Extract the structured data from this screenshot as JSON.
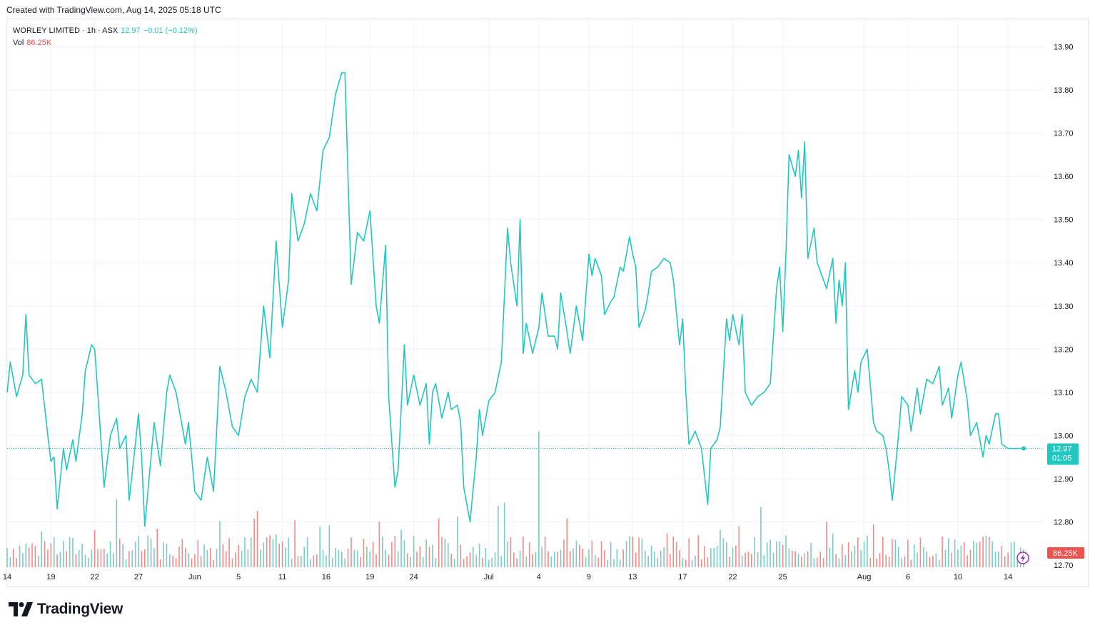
{
  "header": {
    "created_text": "Created with TradingView.com, Aug 14, 2025 05:18 UTC"
  },
  "legend": {
    "symbol": "WORLEY LIMITED · 1h · ASX",
    "price": "12.97",
    "change": "−0.01 (−0.12%)",
    "volume_label": "Vol",
    "volume_value": "86.25K"
  },
  "price_label": {
    "price": "12.97",
    "countdown": "01:05"
  },
  "volume_label_box": "86.25K",
  "brand": {
    "name": "TradingView"
  },
  "colors": {
    "line": "#22c7bf",
    "up_volume": "#7ccbc4",
    "down_volume": "#f28b87",
    "grid": "#f0f3fa",
    "text": "#131722"
  },
  "icons": {
    "logo": "tradingview-logo-icon",
    "lightning": "lightning-icon"
  },
  "chart_data": {
    "type": "line",
    "title": "WORLEY LIMITED · 1h · ASX",
    "y_ticks": [
      "13.90",
      "13.80",
      "13.70",
      "13.60",
      "13.50",
      "13.40",
      "13.30",
      "13.20",
      "13.10",
      "13.00",
      "12.90",
      "12.80",
      "12.70"
    ],
    "ylim": [
      12.695,
      13.962
    ],
    "x_ticks": [
      {
        "label": "14",
        "i": 0
      },
      {
        "label": "19",
        "i": 14
      },
      {
        "label": "22",
        "i": 28
      },
      {
        "label": "27",
        "i": 42
      },
      {
        "label": "Jun",
        "i": 60
      },
      {
        "label": "5",
        "i": 74
      },
      {
        "label": "11",
        "i": 88
      },
      {
        "label": "16",
        "i": 102
      },
      {
        "label": "19",
        "i": 116
      },
      {
        "label": "24",
        "i": 130
      },
      {
        "label": "Jul",
        "i": 154
      },
      {
        "label": "4",
        "i": 170
      },
      {
        "label": "9",
        "i": 186
      },
      {
        "label": "13",
        "i": 200
      },
      {
        "label": "17",
        "i": 216
      },
      {
        "label": "22",
        "i": 232
      },
      {
        "label": "25",
        "i": 248
      },
      {
        "label": "Aug",
        "i": 274
      },
      {
        "label": "6",
        "i": 288
      },
      {
        "label": "10",
        "i": 304
      },
      {
        "label": "14",
        "i": 320
      }
    ],
    "x_count": 326,
    "keypoints": [
      [
        0,
        13.1
      ],
      [
        1,
        13.17
      ],
      [
        3,
        13.09
      ],
      [
        5,
        13.14
      ],
      [
        6,
        13.28
      ],
      [
        7,
        13.14
      ],
      [
        9,
        13.12
      ],
      [
        11,
        13.13
      ],
      [
        13,
        13.0
      ],
      [
        14,
        12.94
      ],
      [
        15,
        12.95
      ],
      [
        16,
        12.83
      ],
      [
        18,
        12.97
      ],
      [
        19,
        12.92
      ],
      [
        21,
        12.99
      ],
      [
        22,
        12.94
      ],
      [
        24,
        13.05
      ],
      [
        25,
        13.15
      ],
      [
        27,
        13.21
      ],
      [
        28,
        13.2
      ],
      [
        30,
        12.99
      ],
      [
        31,
        12.88
      ],
      [
        33,
        13.0
      ],
      [
        35,
        13.04
      ],
      [
        36,
        12.97
      ],
      [
        38,
        13.0
      ],
      [
        39,
        12.85
      ],
      [
        41,
        12.98
      ],
      [
        42,
        13.05
      ],
      [
        43,
        12.95
      ],
      [
        44,
        12.79
      ],
      [
        45,
        12.87
      ],
      [
        47,
        13.03
      ],
      [
        49,
        12.93
      ],
      [
        51,
        13.1
      ],
      [
        52,
        13.14
      ],
      [
        54,
        13.1
      ],
      [
        56,
        13.02
      ],
      [
        57,
        12.98
      ],
      [
        58,
        13.03
      ],
      [
        60,
        12.87
      ],
      [
        62,
        12.85
      ],
      [
        64,
        12.95
      ],
      [
        66,
        12.87
      ],
      [
        68,
        13.16
      ],
      [
        70,
        13.1
      ],
      [
        72,
        13.02
      ],
      [
        74,
        13.0
      ],
      [
        76,
        13.09
      ],
      [
        78,
        13.13
      ],
      [
        80,
        13.1
      ],
      [
        82,
        13.3
      ],
      [
        84,
        13.18
      ],
      [
        86,
        13.45
      ],
      [
        88,
        13.25
      ],
      [
        90,
        13.36
      ],
      [
        91,
        13.56
      ],
      [
        93,
        13.45
      ],
      [
        95,
        13.49
      ],
      [
        97,
        13.56
      ],
      [
        99,
        13.52
      ],
      [
        101,
        13.66
      ],
      [
        103,
        13.69
      ],
      [
        105,
        13.79
      ],
      [
        107,
        13.84
      ],
      [
        108,
        13.84
      ],
      [
        110,
        13.35
      ],
      [
        112,
        13.47
      ],
      [
        114,
        13.45
      ],
      [
        116,
        13.52
      ],
      [
        118,
        13.3
      ],
      [
        119,
        13.26
      ],
      [
        121,
        13.44
      ],
      [
        122,
        13.09
      ],
      [
        124,
        12.88
      ],
      [
        125,
        12.92
      ],
      [
        127,
        13.21
      ],
      [
        128,
        13.07
      ],
      [
        130,
        13.14
      ],
      [
        132,
        13.07
      ],
      [
        134,
        13.12
      ],
      [
        135,
        12.98
      ],
      [
        136,
        13.1
      ],
      [
        137,
        13.12
      ],
      [
        139,
        13.04
      ],
      [
        141,
        13.1
      ],
      [
        142,
        13.06
      ],
      [
        144,
        13.07
      ],
      [
        145,
        13.03
      ],
      [
        146,
        12.88
      ],
      [
        148,
        12.8
      ],
      [
        150,
        12.95
      ],
      [
        151,
        13.06
      ],
      [
        152,
        13.0
      ],
      [
        154,
        13.08
      ],
      [
        156,
        13.1
      ],
      [
        158,
        13.17
      ],
      [
        160,
        13.48
      ],
      [
        161,
        13.4
      ],
      [
        163,
        13.3
      ],
      [
        164,
        13.5
      ],
      [
        165,
        13.19
      ],
      [
        166,
        13.26
      ],
      [
        168,
        13.19
      ],
      [
        170,
        13.25
      ],
      [
        171,
        13.33
      ],
      [
        173,
        13.23
      ],
      [
        175,
        13.23
      ],
      [
        176,
        13.2
      ],
      [
        177,
        13.33
      ],
      [
        179,
        13.24
      ],
      [
        180,
        13.19
      ],
      [
        182,
        13.3
      ],
      [
        184,
        13.22
      ],
      [
        186,
        13.42
      ],
      [
        187,
        13.37
      ],
      [
        188,
        13.41
      ],
      [
        190,
        13.37
      ],
      [
        191,
        13.28
      ],
      [
        193,
        13.31
      ],
      [
        194,
        13.32
      ],
      [
        196,
        13.39
      ],
      [
        197,
        13.38
      ],
      [
        199,
        13.46
      ],
      [
        200,
        13.42
      ],
      [
        201,
        13.39
      ],
      [
        202,
        13.25
      ],
      [
        204,
        13.29
      ],
      [
        205,
        13.33
      ],
      [
        206,
        13.38
      ],
      [
        208,
        13.39
      ],
      [
        210,
        13.41
      ],
      [
        212,
        13.4
      ],
      [
        213,
        13.36
      ],
      [
        215,
        13.21
      ],
      [
        216,
        13.27
      ],
      [
        217,
        13.1
      ],
      [
        218,
        12.98
      ],
      [
        220,
        13.01
      ],
      [
        222,
        12.97
      ],
      [
        224,
        12.84
      ],
      [
        225,
        12.97
      ],
      [
        227,
        12.99
      ],
      [
        228,
        13.02
      ],
      [
        230,
        13.27
      ],
      [
        231,
        13.22
      ],
      [
        232,
        13.28
      ],
      [
        234,
        13.21
      ],
      [
        235,
        13.28
      ],
      [
        236,
        13.1
      ],
      [
        238,
        13.07
      ],
      [
        240,
        13.09
      ],
      [
        242,
        13.1
      ],
      [
        244,
        13.12
      ],
      [
        246,
        13.34
      ],
      [
        247,
        13.39
      ],
      [
        248,
        13.24
      ],
      [
        249,
        13.42
      ],
      [
        250,
        13.65
      ],
      [
        252,
        13.6
      ],
      [
        253,
        13.66
      ],
      [
        254,
        13.55
      ],
      [
        255,
        13.68
      ],
      [
        256,
        13.41
      ],
      [
        258,
        13.48
      ],
      [
        259,
        13.4
      ],
      [
        261,
        13.36
      ],
      [
        262,
        13.34
      ],
      [
        264,
        13.41
      ],
      [
        265,
        13.26
      ],
      [
        266,
        13.36
      ],
      [
        267,
        13.3
      ],
      [
        268,
        13.4
      ],
      [
        269,
        13.06
      ],
      [
        271,
        13.15
      ],
      [
        272,
        13.1
      ],
      [
        273,
        13.17
      ],
      [
        275,
        13.2
      ],
      [
        277,
        13.03
      ],
      [
        278,
        13.01
      ],
      [
        280,
        13.0
      ],
      [
        281,
        12.97
      ],
      [
        282,
        12.92
      ],
      [
        283,
        12.85
      ],
      [
        285,
        13.0
      ],
      [
        286,
        13.09
      ],
      [
        288,
        13.07
      ],
      [
        289,
        13.01
      ],
      [
        291,
        13.11
      ],
      [
        292,
        13.05
      ],
      [
        294,
        13.13
      ],
      [
        296,
        13.12
      ],
      [
        298,
        13.16
      ],
      [
        299,
        13.07
      ],
      [
        301,
        13.11
      ],
      [
        302,
        13.04
      ],
      [
        304,
        13.14
      ],
      [
        305,
        13.17
      ],
      [
        307,
        13.08
      ],
      [
        308,
        13.0
      ],
      [
        310,
        13.03
      ],
      [
        312,
        12.95
      ],
      [
        313,
        13.0
      ],
      [
        314,
        12.98
      ],
      [
        316,
        13.05
      ],
      [
        317,
        13.05
      ],
      [
        318,
        12.98
      ],
      [
        320,
        12.97
      ]
    ]
  }
}
